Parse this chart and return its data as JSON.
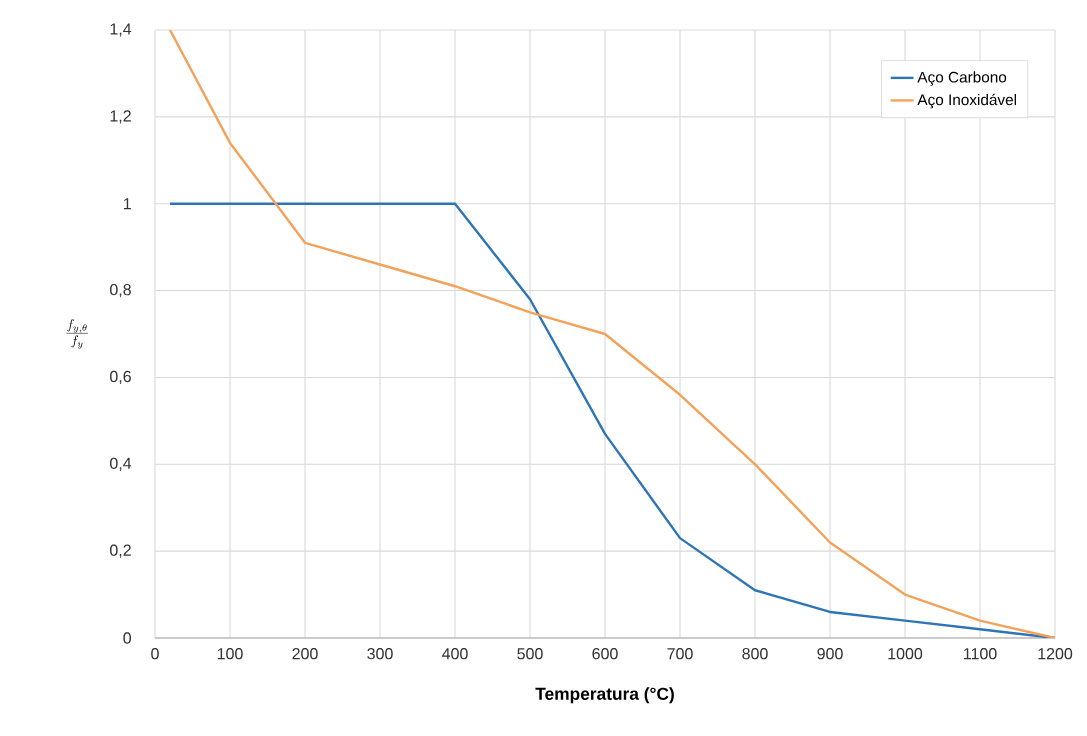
{
  "chart_data": {
    "type": "line",
    "xlabel": "Temperatura (°C)",
    "ylabel": "\\frac{f_{y,\\theta}}{f_y}",
    "x": [
      20,
      100,
      200,
      300,
      400,
      500,
      600,
      700,
      800,
      900,
      1000,
      1100,
      1200
    ],
    "series": [
      {
        "name": "Aço Carbono",
        "color": "#2e75b6",
        "values": [
          1,
          1,
          1,
          1,
          1,
          0.78,
          0.47,
          0.23,
          0.11,
          0.06,
          0.04,
          0.02,
          0
        ]
      },
      {
        "name": "Aço Inoxidável",
        "color": "#f2a25a",
        "values": [
          1.4,
          1.14,
          0.91,
          0.86,
          0.81,
          0.75,
          0.7,
          0.56,
          0.4,
          0.22,
          0.1,
          0.04,
          0
        ]
      }
    ],
    "xlim": [
      0,
      1200
    ],
    "ylim": [
      0,
      1.4
    ],
    "xticks": [
      0,
      100,
      200,
      300,
      400,
      500,
      600,
      700,
      800,
      900,
      1000,
      1100,
      1200
    ],
    "yticks": [
      0,
      {
        "value": 0.2,
        "label": "0,2"
      },
      {
        "value": 0.4,
        "label": "0,4"
      },
      {
        "value": 0.6,
        "label": "0,6"
      },
      {
        "value": 0.8,
        "label": "0,8"
      },
      1,
      {
        "value": 1.2,
        "label": "1,2"
      },
      {
        "value": 1.4,
        "label": "1,4"
      }
    ],
    "grid": true,
    "legend": "top right",
    "marker": "none",
    "line_style": "solid"
  }
}
